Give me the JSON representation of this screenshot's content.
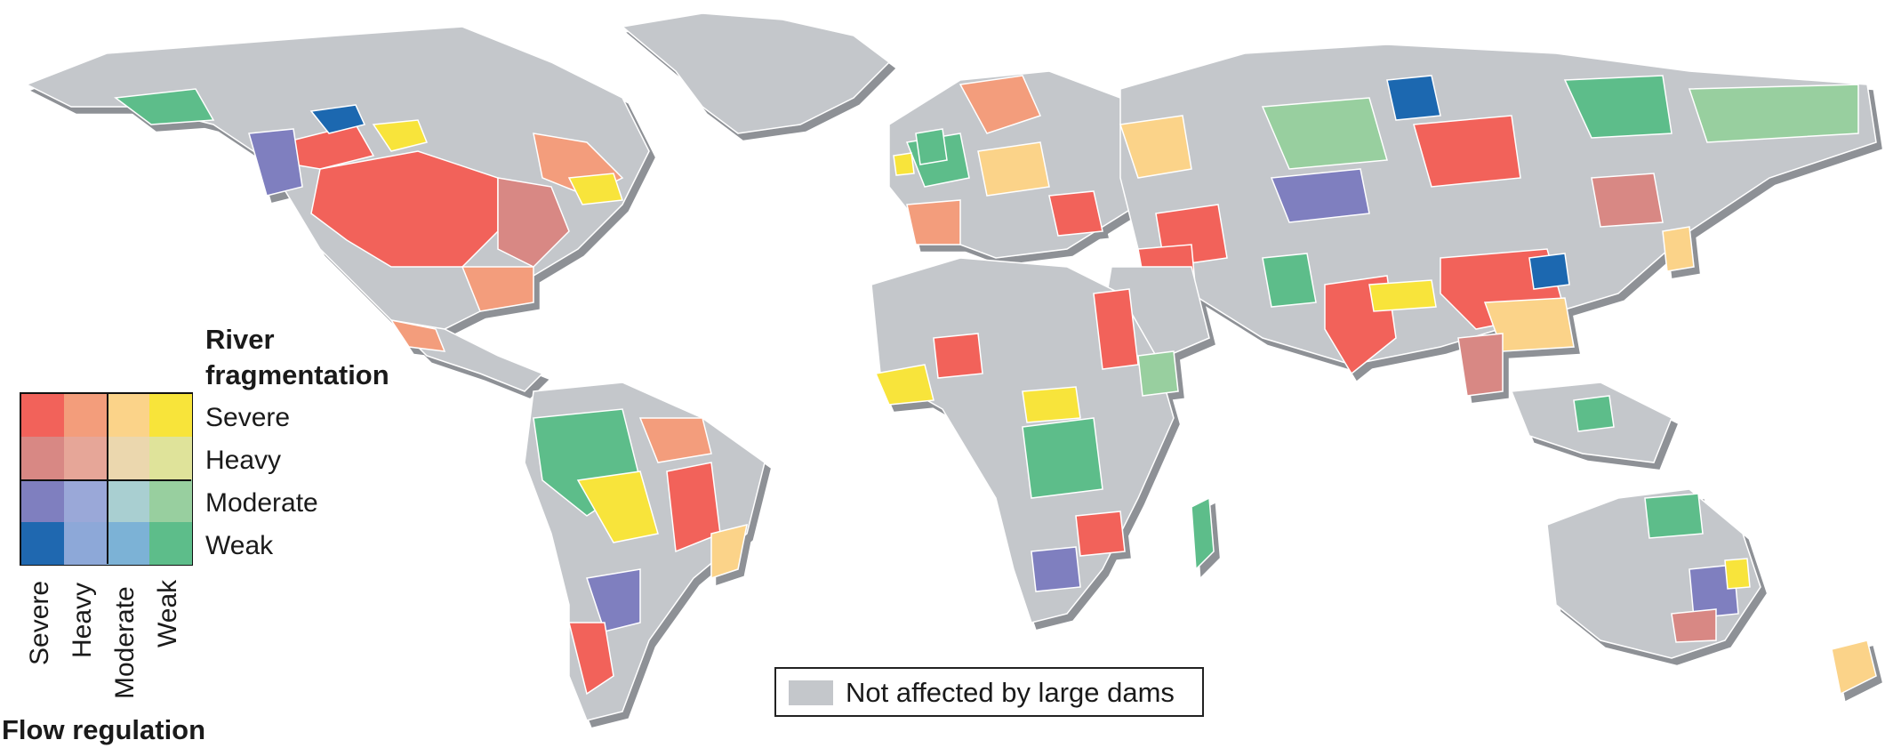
{
  "legend": {
    "title_line1": "River",
    "title_line2": "fragmentation",
    "fragmentation_levels": [
      "Severe",
      "Heavy",
      "Moderate",
      "Weak"
    ],
    "flow_regulation_levels": [
      "Severe",
      "Heavy",
      "Moderate",
      "Weak"
    ],
    "flow_regulation_title": "Flow regulation",
    "colors": [
      [
        "#f2625a",
        "#f39d7b",
        "#fbd389",
        "#f8e43a"
      ],
      [
        "#d88884",
        "#e6a698",
        "#ebd7ae",
        "#dfe39a"
      ],
      [
        "#7f7fbf",
        "#9aa8d8",
        "#a9cfd1",
        "#98cf9f"
      ],
      [
        "#1f68b0",
        "#8da8d8",
        "#7cb2d6",
        "#5dbd8a"
      ]
    ]
  },
  "not_affected": {
    "label": "Not affected by large dams",
    "color": "#c4c7cb"
  },
  "map": {
    "land_color": "#c4c7cb",
    "shadow_color": "#8e9196",
    "border_color": "#ffffff"
  }
}
